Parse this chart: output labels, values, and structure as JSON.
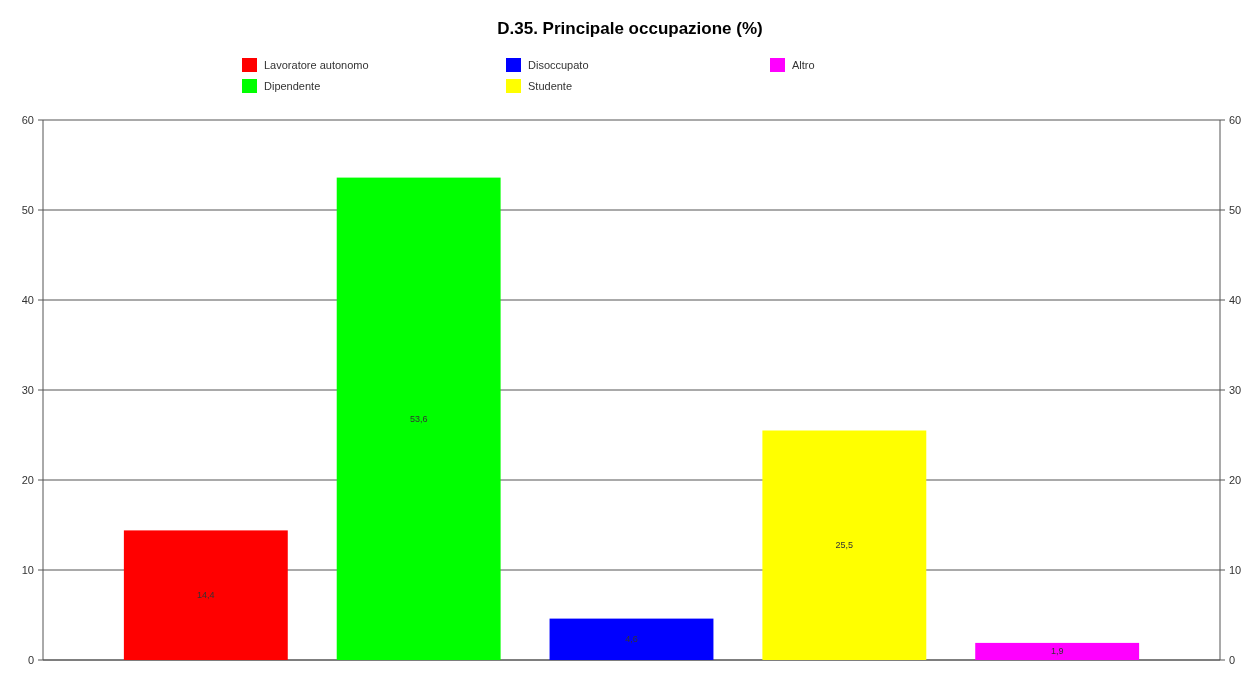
{
  "chart_data": {
    "type": "bar",
    "title": "D.35. Principale occupazione (%)",
    "categories": [
      null,
      null,
      null,
      null,
      null
    ],
    "series": [
      {
        "name": "Lavoratore autonomo",
        "color": "#ff0000",
        "values": [
          14.4,
          null,
          null,
          null,
          null
        ],
        "value_labels": [
          "14,4",
          null,
          null,
          null,
          null
        ]
      },
      {
        "name": "Dipendente",
        "color": "#00ff00",
        "values": [
          null,
          53.6,
          null,
          null,
          null
        ],
        "value_labels": [
          null,
          "53,6",
          null,
          null,
          null
        ]
      },
      {
        "name": "Disoccupato",
        "color": "#0000ff",
        "values": [
          null,
          null,
          4.6,
          null,
          null
        ],
        "value_labels": [
          null,
          null,
          "4,6",
          null,
          null
        ]
      },
      {
        "name": "Studente",
        "color": "#ffff00",
        "values": [
          null,
          null,
          null,
          25.5,
          null
        ],
        "value_labels": [
          null,
          null,
          null,
          "25,5",
          null
        ]
      },
      {
        "name": "Altro",
        "color": "#ff00ff",
        "values": [
          null,
          null,
          null,
          null,
          1.9
        ],
        "value_labels": [
          null,
          null,
          null,
          null,
          "1,9"
        ]
      }
    ],
    "ylim": [
      0,
      60
    ],
    "yticks": [
      0,
      10,
      20,
      30,
      40,
      50,
      60
    ],
    "y2lim": [
      0,
      60
    ],
    "y2ticks": [
      0,
      10,
      20,
      30,
      40,
      50,
      60
    ],
    "grid": "y",
    "legend": "top"
  }
}
